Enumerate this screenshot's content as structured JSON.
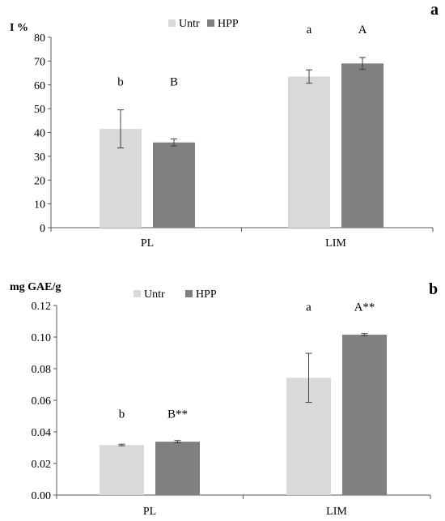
{
  "chart_data": [
    {
      "panel_label": "a",
      "type": "bar",
      "ylabel": "I %",
      "categories": [
        "PL",
        "LIM"
      ],
      "ylim": [
        0,
        80
      ],
      "yticks": [
        0,
        10,
        20,
        30,
        40,
        50,
        60,
        70,
        80
      ],
      "legend_position": "top-center",
      "grid": false,
      "series": [
        {
          "name": "Untr",
          "color": "#d9d9d9",
          "values": [
            41.5,
            63.5
          ],
          "errors": [
            8.0,
            2.8
          ],
          "letters": [
            "b",
            "a"
          ]
        },
        {
          "name": "HPP",
          "color": "#808080",
          "values": [
            35.8,
            69.0
          ],
          "errors": [
            1.5,
            2.5
          ],
          "letters": [
            "B",
            "A"
          ]
        }
      ]
    },
    {
      "panel_label": "b",
      "type": "bar",
      "ylabel": "mg GAE/g",
      "categories": [
        "PL",
        "LIM"
      ],
      "ylim": [
        0,
        0.12
      ],
      "yticks": [
        "0.00",
        "0.02",
        "0.04",
        "0.06",
        "0.08",
        "0.10",
        "0.12"
      ],
      "legend_position": "top-center",
      "grid": false,
      "series": [
        {
          "name": "Untr",
          "color": "#d9d9d9",
          "values": [
            0.0317,
            0.0742
          ],
          "errors": [
            0.0005,
            0.0155
          ],
          "letters": [
            "b",
            "a"
          ]
        },
        {
          "name": "HPP",
          "color": "#808080",
          "values": [
            0.0338,
            0.1015
          ],
          "errors": [
            0.0007,
            0.0007
          ],
          "letters": [
            "B**",
            "A**"
          ]
        }
      ]
    }
  ]
}
